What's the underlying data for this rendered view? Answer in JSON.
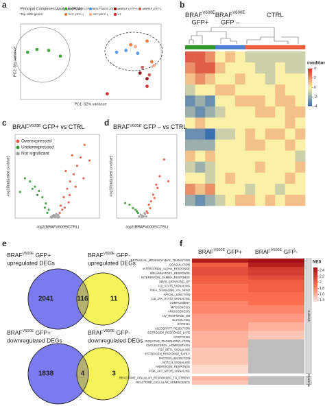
{
  "panel_labels": [
    "a",
    "b",
    "c",
    "d",
    "e",
    "f"
  ],
  "chart_data": [
    {
      "type": "scatter",
      "title": "Principal Component Analysis (PCA)",
      "subtitle": "Top 1000 genes",
      "xlabel": "PC1: 62% variance",
      "ylabel": "PC2: 8% variance",
      "xlim": [
        -30,
        30
      ],
      "ylim": [
        -20,
        20
      ],
      "legend": "top",
      "series": [
        {
          "name": "BRAFV600E (GFP+)",
          "color": "#33a02c",
          "x": [
            -27,
            -23,
            -18,
            -13
          ],
          "values": [
            5,
            6.5,
            6,
            3
          ]
        },
        {
          "name": "BRAFV600E (GFP-)",
          "color": "#4a90e2",
          "x": [
            11,
            15,
            20
          ],
          "values": [
            5,
            6,
            4.5
          ]
        },
        {
          "name": "wtBRAF (GFP+)",
          "color": "#8b0000",
          "x": [
            21,
            24
          ],
          "values": [
            -6,
            -9
          ]
        },
        {
          "name": "wtBRAF (GFP-)",
          "color": "#c0504d",
          "x": [
            22,
            25
          ],
          "values": [
            -3,
            -7
          ]
        },
        {
          "name": "GFP (GFP+)",
          "color": "#e8702a",
          "x": [
            17,
            24,
            26
          ],
          "values": [
            9,
            11,
            0
          ]
        },
        {
          "name": "GFP (GFP-)",
          "color": "#f4a582",
          "x": [
            19,
            27
          ],
          "values": [
            8,
            -2
          ]
        },
        {
          "name": "UT",
          "color": "#d7191c",
          "x": [
            7,
            24
          ],
          "values": [
            -17,
            -13
          ]
        }
      ]
    },
    {
      "type": "heatmap",
      "column_groups": [
        {
          "base": "BRAF",
          "sup": "V600E",
          "line2": "GFP+",
          "color": "#2e9a2e"
        },
        {
          "base": "BRAF",
          "sup": "V600E",
          "line2": "GFP –",
          "color": "#4a7fd4"
        },
        {
          "base": "CTRL",
          "color": "#e8603c"
        }
      ],
      "condition": [
        0,
        0,
        0,
        1,
        1,
        1,
        2,
        2,
        2,
        2,
        2,
        2
      ],
      "values": [
        [
          3,
          3,
          2,
          0,
          1,
          0,
          -1,
          -1,
          -1,
          -1,
          -1,
          -1
        ],
        [
          2,
          3,
          3,
          1,
          0,
          0,
          0,
          -1,
          -1,
          0,
          -1,
          -1
        ],
        [
          1,
          2,
          1,
          0,
          0,
          1,
          0,
          0,
          -1,
          0,
          0,
          0
        ],
        [
          -1,
          0,
          0,
          1,
          1,
          0,
          0,
          0,
          0,
          1,
          0,
          0
        ],
        [
          -3,
          -2,
          -3,
          0,
          0,
          1,
          1,
          1,
          0,
          1,
          1,
          0
        ],
        [
          -2,
          -3,
          -2,
          -1,
          0,
          0,
          0,
          1,
          1,
          0,
          1,
          1
        ],
        [
          0,
          1,
          0,
          0,
          0,
          0,
          0,
          0,
          0,
          0,
          1,
          0
        ],
        [
          -3,
          -3,
          -4,
          -1,
          -1,
          0,
          1,
          0,
          1,
          1,
          0,
          1
        ],
        [
          -2,
          -2,
          -2,
          0,
          0,
          0,
          1,
          1,
          0,
          0,
          1,
          0
        ],
        [
          1,
          0,
          1,
          0,
          0,
          0,
          0,
          0,
          0,
          0,
          0,
          -1
        ],
        [
          -1,
          -2,
          -1,
          0,
          0,
          0,
          0,
          1,
          0,
          0,
          0,
          1
        ],
        [
          0,
          0,
          -1,
          0,
          1,
          0,
          0,
          0,
          0,
          0,
          1,
          0
        ],
        [
          2,
          1,
          2,
          0,
          0,
          0,
          -1,
          0,
          0,
          -1,
          0,
          0
        ],
        [
          -2,
          -3,
          -2,
          -1,
          0,
          1,
          1,
          0,
          1,
          0,
          1,
          1
        ]
      ],
      "colorbar": {
        "title": "condition",
        "lim": [
          -4,
          4
        ],
        "ticks": [
          4,
          2,
          0,
          -2,
          -4
        ],
        "colors": [
          "#3a6fb0",
          "#fbf0a8",
          "#d73027"
        ]
      }
    },
    {
      "type": "scatter",
      "title": {
        "base": "BRAF",
        "sup": "V600E",
        "rest": " GFP+",
        "tail": " vs CTRL",
        "color": "#2e9a2e"
      },
      "xlabel": "-log2(BRAFV600E/CTRL)",
      "ylabel": "-log10(adjusted p-value)",
      "xlim": [
        -8,
        9
      ],
      "ylim": [
        0,
        80
      ],
      "legend": "upper left",
      "series": [
        {
          "name": "Overexpressed",
          "color": "#e05a44",
          "x": [
            1.2,
            1.8,
            2.5,
            3.1,
            3.8,
            4.5,
            5.2,
            6.0,
            2.2,
            3.5,
            4.2,
            1.5,
            2.8,
            5.8,
            7.0,
            1.0,
            2.0,
            3.0
          ],
          "values": [
            12,
            20,
            28,
            35,
            42,
            50,
            58,
            70,
            45,
            60,
            30,
            8,
            15,
            38,
            55,
            5,
            10,
            22
          ]
        },
        {
          "name": "Underexpressed",
          "color": "#3a9a3a",
          "x": [
            -1.2,
            -1.8,
            -2.5,
            -3.2,
            -4.0,
            -5.0,
            -6.0,
            -2.0,
            -3.5,
            -1.5,
            -4.5,
            -7.0
          ],
          "values": [
            8,
            14,
            20,
            26,
            30,
            35,
            38,
            10,
            22,
            5,
            28,
            25
          ]
        },
        {
          "name": "Not significant",
          "color": "#a0a0a0",
          "x": [
            -0.8,
            -0.5,
            -0.2,
            0.1,
            0.4,
            0.7,
            0.9,
            -0.6,
            0.3,
            0.6,
            -0.3,
            0.0
          ],
          "values": [
            1,
            2,
            3,
            1,
            2,
            3,
            1,
            0.5,
            4,
            0.5,
            1.5,
            2.5
          ]
        }
      ]
    },
    {
      "type": "scatter",
      "title": {
        "base": "BRAF",
        "sup": "V600E",
        "rest": " GFP –",
        "tail": " vs CTRL",
        "color": "#4a7fd4"
      },
      "xlabel": "-log2(BRAFV600E/CTRL)",
      "ylabel": "-log10(adjusted p-value)",
      "xlim": [
        -6,
        8
      ],
      "ylim": [
        0,
        50
      ],
      "series": [
        {
          "color": "#e05a44",
          "x": [
            1.0,
            1.5,
            2.0,
            2.5,
            3.2,
            4.0,
            5.0,
            1.8,
            2.8,
            3.5,
            6.0,
            1.2
          ],
          "values": [
            4,
            8,
            10,
            14,
            20,
            25,
            35,
            6,
            12,
            18,
            22,
            3
          ]
        },
        {
          "color": "#3a9a3a",
          "x": [
            -1.0,
            -1.6,
            -2.2,
            -3.0,
            -4.0,
            -1.3
          ],
          "values": [
            3,
            5,
            6,
            8,
            9,
            4
          ]
        },
        {
          "color": "#a0a0a0",
          "x": [
            -0.8,
            -0.4,
            0,
            0.3,
            0.6,
            0.9,
            -0.2,
            0.5
          ],
          "values": [
            1,
            2,
            1.5,
            1,
            2.5,
            1,
            0.5,
            3
          ]
        }
      ]
    },
    {
      "type": "venn",
      "diagrams": [
        {
          "sets": [
            {
              "base": "BRAF",
              "sup": "V600E",
              "rest": " GFP+",
              "line2": "upregulated DEGs",
              "color": "#3f8f3f"
            },
            {
              "base": "BRAF",
              "sup": "V600E",
              "rest": " GFP-",
              "line2": "upregulated DEGs",
              "color": "#3a6fd0"
            }
          ],
          "counts": [
            2041,
            116,
            11
          ]
        },
        {
          "sets": [
            {
              "base": "BRAF",
              "sup": "V600E",
              "rest": " GFP+",
              "line2": "downregulated DEGs",
              "color": "#3f8f3f"
            },
            {
              "base": "BRAF",
              "sup": "V600E",
              "rest": " GFP-",
              "line2": "downregulated DEGs",
              "color": "#3a6fd0"
            }
          ],
          "counts": [
            1838,
            4,
            3
          ]
        }
      ],
      "colors": [
        "#7b7bf0",
        "#f5f25a",
        "#b3b070"
      ]
    },
    {
      "type": "heatmap",
      "columns": [
        {
          "base": "BRAF",
          "sup": "V600E",
          "rest": " GFP+"
        },
        {
          "base": "BRAF",
          "sup": "V600E",
          "rest": " GFP-"
        }
      ],
      "groups": [
        {
          "name": "Hallmark",
          "rows": [
            "EPITHELIAL_MESENCHYMAL_TRANSITION",
            "COAGULATION",
            "INTERFERON_ALPHA_RESPONSE",
            "INFLAMMATORY_RESPONSE",
            "INTERFERON_GAMMA_RESPONSE",
            "KRAS_SIGNALING_UP",
            "IL2_STAT5_SIGNALING",
            "TNFA_SIGNALING_VIA_NFKB",
            "APICAL_JUNCTION",
            "IL6_JAK_STAT3_SIGNALING",
            "COMPLEMENT",
            "MYOGENESIS",
            "ANGIOGENESIS",
            "UV_RESPONSE_DN",
            "GLYCOLYSIS",
            "HYPOXIA",
            "ALLOGRAFT_REJECTION",
            "ESTROGEN_RESPONSE_LATE",
            "APOPTOSIS",
            "OXIDATIVE_PHOSPHORYLATION",
            "CHOLESTEROL_HOMEOSTASIS",
            "TGF_BETA_SIGNALING",
            "ESTROGEN_RESPONSE_EARLY",
            "PROTEIN_SECRETION",
            "NOTCH_SIGNALING",
            "ANDROGEN_RESPONSE",
            "PI3K_AKT_MTOR_SIGNALING"
          ],
          "values": [
            [
              2.4,
              2.5
            ],
            [
              2.0,
              2.4
            ],
            [
              2.1,
              2.2
            ],
            [
              2.1,
              2.2
            ],
            [
              2.0,
              2.1
            ],
            [
              2.0,
              2.0
            ],
            [
              1.9,
              2.0
            ],
            [
              1.9,
              2.0
            ],
            [
              1.9,
              1.9
            ],
            [
              1.9,
              1.9
            ],
            [
              1.8,
              1.9
            ],
            [
              1.8,
              1.8
            ],
            [
              1.8,
              1.8
            ],
            [
              1.7,
              1.7
            ],
            [
              1.7,
              1.7
            ],
            [
              1.7,
              1.6
            ],
            [
              1.7,
              1.6
            ],
            [
              1.6,
              1.5
            ],
            [
              1.6,
              1.5
            ],
            [
              1.6,
              null
            ],
            [
              1.6,
              null
            ],
            [
              1.5,
              null
            ],
            [
              1.5,
              null
            ],
            [
              1.5,
              null
            ],
            [
              1.5,
              null
            ],
            [
              1.4,
              null
            ],
            [
              1.4,
              null
            ]
          ]
        },
        {
          "name": "Reactome",
          "rows": [
            "REACTOME_CELLULAR_RESPONSES_TO_STRESS",
            "REACTOME_CELLULAR_SENESCENCE"
          ],
          "values": [
            [
              1.6,
              null
            ],
            [
              1.5,
              null
            ]
          ]
        }
      ],
      "na_color": "#bdbdbd",
      "colorbar": {
        "title": "NES",
        "lim": [
          1.35,
          2.5
        ],
        "ticks": [
          2.4,
          2.2,
          2.0,
          1.8,
          1.6,
          1.4
        ],
        "colors": [
          "#fee5d9",
          "#fb6a4a",
          "#a50f15"
        ]
      }
    }
  ]
}
